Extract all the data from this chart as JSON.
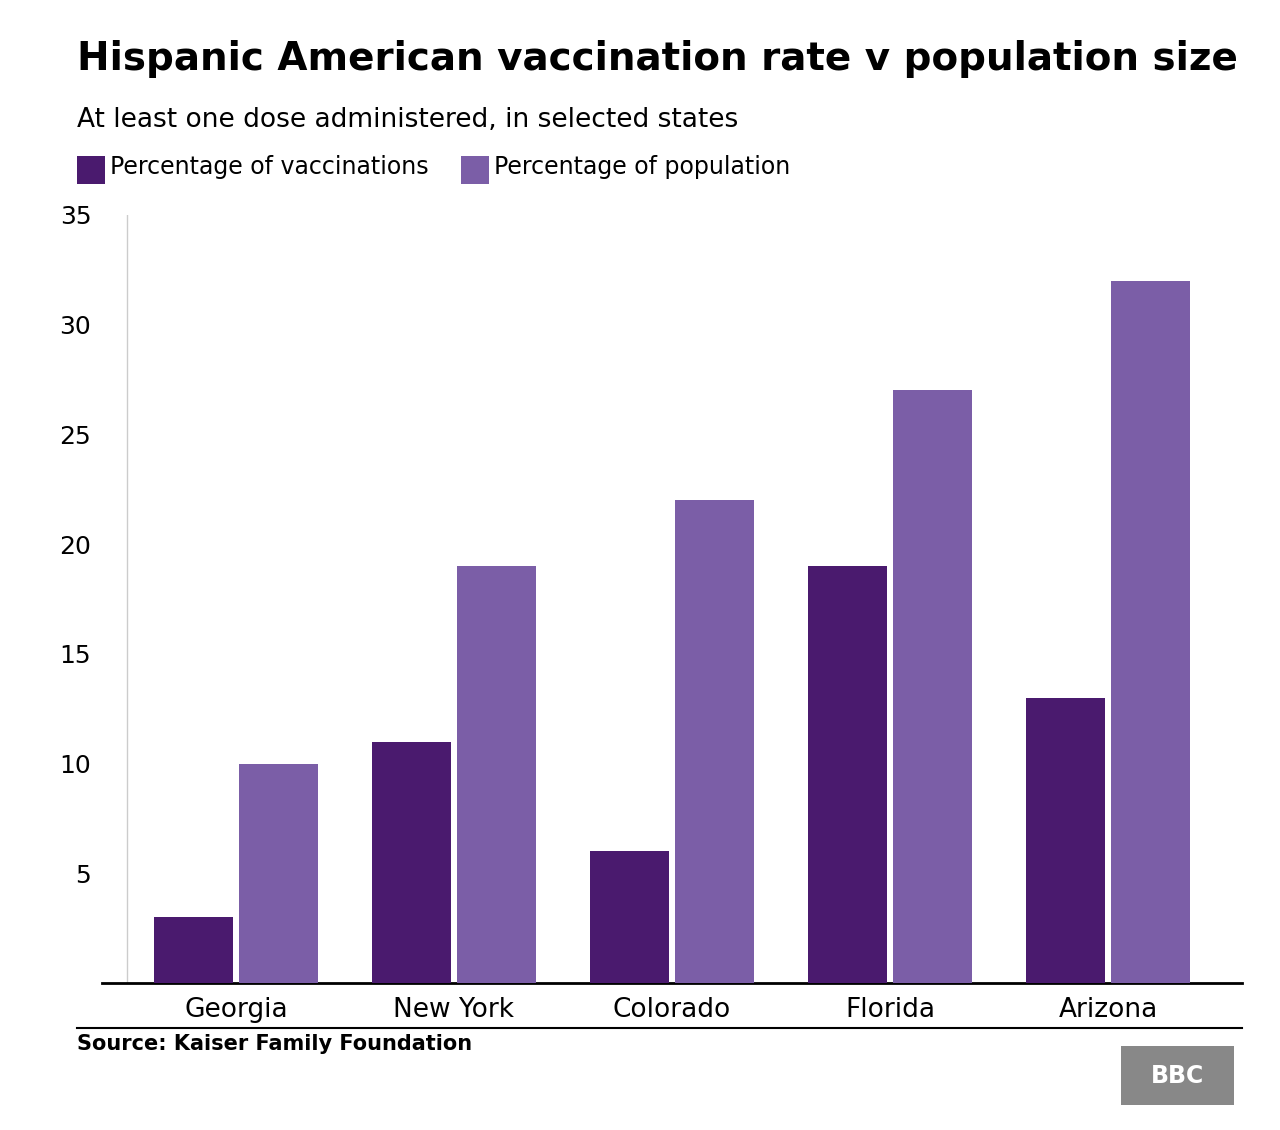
{
  "title": "Hispanic American vaccination rate v population size",
  "subtitle": "At least one dose administered, in selected states",
  "source": "Source: Kaiser Family Foundation",
  "categories": [
    "Georgia",
    "New York",
    "Colorado",
    "Florida",
    "Arizona"
  ],
  "vaccinations": [
    3.0,
    11.0,
    6.0,
    19.0,
    13.0
  ],
  "population": [
    10.0,
    19.0,
    22.0,
    27.0,
    32.0
  ],
  "color_vaccinations": "#4a1a6e",
  "color_population": "#7b5ea7",
  "ylim": [
    0,
    35
  ],
  "yticks": [
    0,
    5,
    10,
    15,
    20,
    25,
    30,
    35
  ],
  "background_color": "#ffffff",
  "title_fontsize": 28,
  "subtitle_fontsize": 19,
  "tick_fontsize": 18,
  "label_fontsize": 19,
  "legend_fontsize": 17,
  "source_fontsize": 15
}
